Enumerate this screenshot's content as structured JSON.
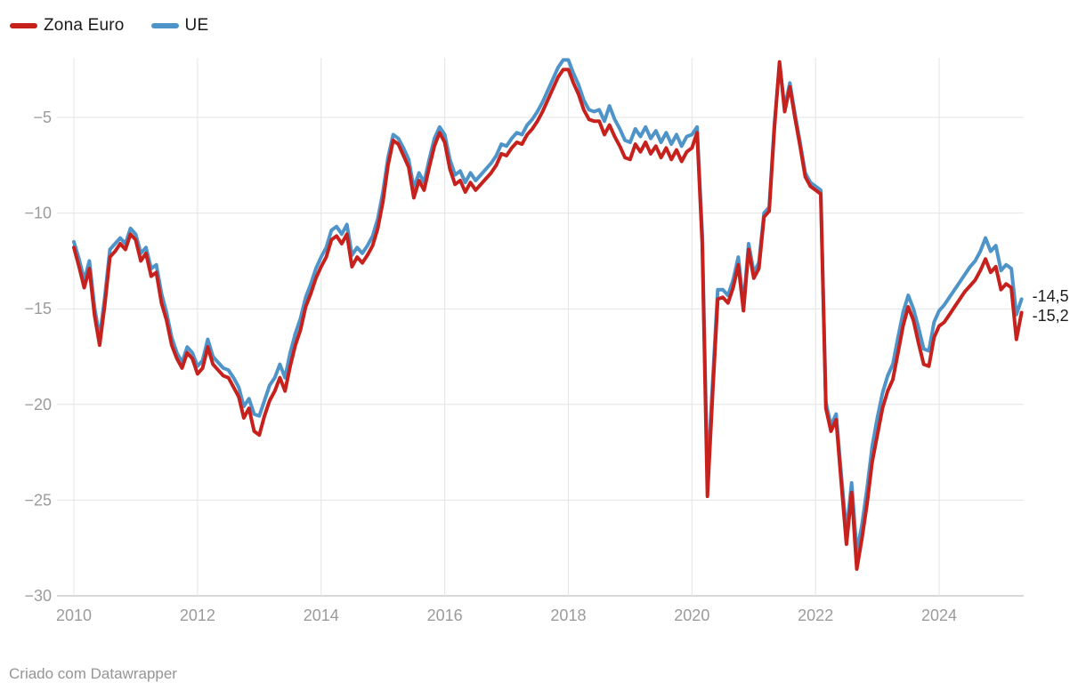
{
  "footer": {
    "text": "Criado com Datawrapper"
  },
  "colors": {
    "zona_euro": "#c7211d",
    "ue": "#4f94c9",
    "grid": "#e4e4e4",
    "baseline": "#cccccc",
    "tick_text": "#9b9b9b",
    "end_label_text": "#1d1d1e"
  },
  "chart_data": {
    "type": "line",
    "title": "",
    "xlabel": "",
    "ylabel": "",
    "x_unit": "month",
    "x_start": "2010-01",
    "x_end": "2025-05",
    "x_tick_years": [
      2010,
      2012,
      2014,
      2016,
      2018,
      2020,
      2022,
      2024
    ],
    "x_tick_labels": [
      "2010",
      "2012",
      "2014",
      "2016",
      "2018",
      "2020",
      "2022",
      "2024"
    ],
    "y_ticks": [
      -5,
      -10,
      -15,
      -20,
      -25,
      -30
    ],
    "y_tick_labels": [
      "-5",
      "-10",
      "-15",
      "-20",
      "-25",
      "-30"
    ],
    "ylim": [
      -30,
      -1.5
    ],
    "grid": true,
    "legend_position": "top-left",
    "series": [
      {
        "name": "Zona Euro",
        "color": "#c7211d",
        "end_label": "-15,2",
        "values": [
          -11.8,
          -12.8,
          -13.9,
          -12.9,
          -15.3,
          -16.9,
          -14.8,
          -12.3,
          -12.0,
          -11.6,
          -11.9,
          -11.1,
          -11.4,
          -12.5,
          -12.1,
          -13.3,
          -13.1,
          -14.7,
          -15.6,
          -16.9,
          -17.6,
          -18.1,
          -17.3,
          -17.6,
          -18.4,
          -18.1,
          -17.0,
          -17.9,
          -18.2,
          -18.5,
          -18.6,
          -19.1,
          -19.6,
          -20.7,
          -20.2,
          -21.4,
          -21.6,
          -20.6,
          -19.8,
          -19.3,
          -18.6,
          -19.3,
          -18.0,
          -16.9,
          -16.1,
          -14.9,
          -14.2,
          -13.4,
          -12.8,
          -12.3,
          -11.4,
          -11.2,
          -11.6,
          -11.1,
          -12.8,
          -12.3,
          -12.6,
          -12.2,
          -11.7,
          -10.8,
          -9.4,
          -7.5,
          -6.2,
          -6.4,
          -7.0,
          -7.6,
          -9.2,
          -8.3,
          -8.8,
          -7.6,
          -6.5,
          -5.8,
          -6.3,
          -7.7,
          -8.5,
          -8.3,
          -8.9,
          -8.4,
          -8.8,
          -8.5,
          -8.2,
          -7.9,
          -7.5,
          -6.9,
          -7.0,
          -6.6,
          -6.3,
          -6.4,
          -5.9,
          -5.6,
          -5.2,
          -4.7,
          -4.1,
          -3.5,
          -2.9,
          -2.5,
          -2.5,
          -3.2,
          -3.8,
          -4.6,
          -5.1,
          -5.2,
          -5.2,
          -5.9,
          -5.4,
          -6.0,
          -6.5,
          -7.1,
          -7.2,
          -6.4,
          -6.8,
          -6.3,
          -6.9,
          -6.5,
          -7.1,
          -6.6,
          -7.2,
          -6.7,
          -7.3,
          -6.8,
          -6.6,
          -5.8,
          -11.6,
          -24.8,
          -19.5,
          -14.5,
          -14.4,
          -14.7,
          -13.9,
          -12.7,
          -15.1,
          -11.9,
          -13.4,
          -12.9,
          -10.2,
          -9.9,
          -5.6,
          -2.1,
          -4.7,
          -3.4,
          -5.0,
          -6.5,
          -8.1,
          -8.6,
          -8.8,
          -9.0,
          -20.2,
          -21.4,
          -20.8,
          -24.1,
          -27.3,
          -24.6,
          -28.6,
          -27.0,
          -25.2,
          -23.0,
          -21.6,
          -20.2,
          -19.3,
          -18.7,
          -17.3,
          -15.9,
          -14.9,
          -15.6,
          -16.8,
          -17.9,
          -18.0,
          -16.5,
          -15.9,
          -15.7,
          -15.3,
          -14.9,
          -14.5,
          -14.1,
          -13.8,
          -13.5,
          -13.0,
          -12.4,
          -13.1,
          -12.8,
          -14.0,
          -13.7,
          -13.9,
          -16.6,
          -15.2
        ]
      },
      {
        "name": "UE",
        "color": "#4f94c9",
        "end_label": "-14,5",
        "values": [
          -11.5,
          -12.4,
          -13.5,
          -12.5,
          -14.9,
          -16.5,
          -14.4,
          -11.9,
          -11.6,
          -11.3,
          -11.6,
          -10.8,
          -11.1,
          -12.1,
          -11.8,
          -12.9,
          -12.7,
          -14.2,
          -15.2,
          -16.5,
          -17.3,
          -17.8,
          -17.0,
          -17.3,
          -18.0,
          -17.7,
          -16.6,
          -17.5,
          -17.8,
          -18.1,
          -18.2,
          -18.6,
          -19.1,
          -20.1,
          -19.7,
          -20.5,
          -20.6,
          -19.8,
          -19.0,
          -18.6,
          -17.9,
          -18.6,
          -17.3,
          -16.3,
          -15.5,
          -14.4,
          -13.7,
          -12.9,
          -12.3,
          -11.8,
          -10.9,
          -10.7,
          -11.1,
          -10.6,
          -12.2,
          -11.8,
          -12.1,
          -11.7,
          -11.2,
          -10.3,
          -8.9,
          -7.1,
          -5.9,
          -6.1,
          -6.6,
          -7.2,
          -8.7,
          -7.9,
          -8.4,
          -7.2,
          -6.1,
          -5.5,
          -5.9,
          -7.2,
          -8.0,
          -7.8,
          -8.4,
          -7.9,
          -8.3,
          -8.0,
          -7.7,
          -7.4,
          -7.0,
          -6.4,
          -6.5,
          -6.1,
          -5.8,
          -5.9,
          -5.4,
          -5.1,
          -4.7,
          -4.2,
          -3.6,
          -3.0,
          -2.4,
          -2.0,
          -2.0,
          -2.7,
          -3.3,
          -4.1,
          -4.6,
          -4.7,
          -4.6,
          -5.2,
          -4.4,
          -5.1,
          -5.6,
          -6.2,
          -6.3,
          -5.6,
          -6.0,
          -5.5,
          -6.1,
          -5.7,
          -6.3,
          -5.8,
          -6.4,
          -5.9,
          -6.5,
          -6.0,
          -5.9,
          -5.5,
          -11.1,
          -23.9,
          -18.9,
          -14.0,
          -14.0,
          -14.3,
          -13.5,
          -12.3,
          -14.8,
          -11.6,
          -13.1,
          -12.6,
          -10.0,
          -9.7,
          -5.4,
          -2.2,
          -4.5,
          -3.2,
          -4.8,
          -6.3,
          -7.9,
          -8.4,
          -8.6,
          -8.8,
          -19.9,
          -21.1,
          -20.5,
          -23.7,
          -26.7,
          -24.1,
          -27.7,
          -26.3,
          -24.4,
          -22.2,
          -20.7,
          -19.4,
          -18.5,
          -17.9,
          -16.5,
          -15.2,
          -14.3,
          -15.0,
          -16.0,
          -17.1,
          -17.2,
          -15.7,
          -15.1,
          -14.8,
          -14.4,
          -14.0,
          -13.6,
          -13.2,
          -12.8,
          -12.5,
          -12.0,
          -11.3,
          -12.0,
          -11.7,
          -13.0,
          -12.7,
          -12.9,
          -15.3,
          -14.5
        ]
      }
    ]
  }
}
